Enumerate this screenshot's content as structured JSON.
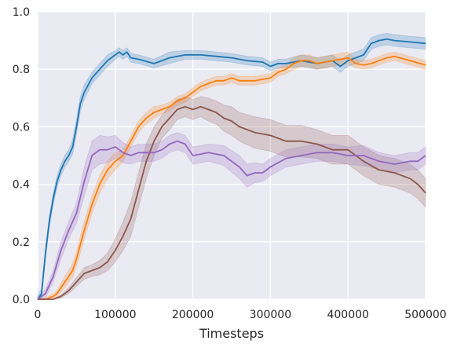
{
  "chart_data": {
    "type": "line",
    "title": "",
    "xlabel": "Timesteps",
    "ylabel": "",
    "xlim": [
      0,
      500000
    ],
    "ylim": [
      0,
      1.0
    ],
    "grid": true,
    "background": "#eaeaf2",
    "xticks": [
      0,
      100000,
      200000,
      300000,
      400000,
      500000
    ],
    "xtick_labels": [
      "0",
      "100000",
      "200000",
      "300000",
      "400000",
      "500000"
    ],
    "yticks": [
      0.0,
      0.2,
      0.4,
      0.6,
      0.8,
      1.0
    ],
    "ytick_labels": [
      "0.0",
      "0.2",
      "0.4",
      "0.6",
      "0.8",
      "1.0"
    ],
    "series": [
      {
        "color": "#1f77b4",
        "x": [
          0,
          5000,
          10000,
          15000,
          20000,
          25000,
          30000,
          35000,
          40000,
          45000,
          50000,
          55000,
          60000,
          70000,
          80000,
          90000,
          100000,
          105000,
          110000,
          115000,
          120000,
          130000,
          150000,
          170000,
          190000,
          210000,
          230000,
          250000,
          270000,
          290000,
          300000,
          310000,
          320000,
          340000,
          360000,
          380000,
          390000,
          400000,
          410000,
          420000,
          430000,
          440000,
          450000,
          460000,
          480000,
          500000
        ],
        "y": [
          0.0,
          0.02,
          0.16,
          0.27,
          0.35,
          0.41,
          0.45,
          0.48,
          0.5,
          0.53,
          0.6,
          0.68,
          0.72,
          0.77,
          0.8,
          0.83,
          0.85,
          0.86,
          0.85,
          0.86,
          0.84,
          0.835,
          0.82,
          0.84,
          0.85,
          0.85,
          0.845,
          0.84,
          0.83,
          0.825,
          0.81,
          0.82,
          0.82,
          0.83,
          0.82,
          0.83,
          0.81,
          0.83,
          0.84,
          0.85,
          0.89,
          0.9,
          0.905,
          0.9,
          0.895,
          0.89
        ],
        "band": [
          0.015,
          0.015,
          0.02,
          0.02,
          0.02,
          0.02,
          0.02,
          0.02,
          0.02,
          0.025,
          0.025,
          0.025,
          0.025,
          0.02,
          0.02,
          0.02,
          0.015,
          0.015,
          0.015,
          0.015,
          0.015,
          0.015,
          0.015,
          0.02,
          0.015,
          0.015,
          0.015,
          0.015,
          0.015,
          0.015,
          0.015,
          0.015,
          0.015,
          0.02,
          0.02,
          0.02,
          0.02,
          0.02,
          0.02,
          0.02,
          0.02,
          0.02,
          0.02,
          0.02,
          0.02,
          0.02
        ]
      },
      {
        "color": "#ff7f0e",
        "x": [
          0,
          10000,
          20000,
          25000,
          30000,
          35000,
          40000,
          45000,
          50000,
          55000,
          60000,
          70000,
          80000,
          90000,
          100000,
          110000,
          120000,
          130000,
          140000,
          150000,
          160000,
          170000,
          180000,
          190000,
          200000,
          210000,
          220000,
          230000,
          240000,
          250000,
          260000,
          280000,
          300000,
          310000,
          320000,
          330000,
          340000,
          350000,
          360000,
          380000,
          400000,
          410000,
          420000,
          430000,
          440000,
          450000,
          460000,
          480000,
          500000
        ],
        "y": [
          0.0,
          0.0,
          0.01,
          0.02,
          0.04,
          0.06,
          0.08,
          0.1,
          0.14,
          0.19,
          0.24,
          0.33,
          0.4,
          0.45,
          0.48,
          0.5,
          0.55,
          0.6,
          0.63,
          0.65,
          0.66,
          0.67,
          0.69,
          0.7,
          0.72,
          0.74,
          0.75,
          0.76,
          0.76,
          0.77,
          0.76,
          0.76,
          0.77,
          0.79,
          0.8,
          0.82,
          0.83,
          0.83,
          0.82,
          0.83,
          0.84,
          0.82,
          0.815,
          0.82,
          0.83,
          0.84,
          0.845,
          0.83,
          0.815
        ],
        "band": [
          0.0,
          0.005,
          0.01,
          0.01,
          0.015,
          0.02,
          0.02,
          0.025,
          0.025,
          0.03,
          0.03,
          0.03,
          0.03,
          0.03,
          0.03,
          0.02,
          0.02,
          0.02,
          0.02,
          0.02,
          0.015,
          0.015,
          0.015,
          0.015,
          0.015,
          0.015,
          0.015,
          0.015,
          0.015,
          0.015,
          0.015,
          0.015,
          0.015,
          0.015,
          0.015,
          0.02,
          0.02,
          0.02,
          0.02,
          0.02,
          0.02,
          0.015,
          0.015,
          0.015,
          0.015,
          0.015,
          0.015,
          0.015,
          0.015
        ]
      },
      {
        "color": "#8c564b",
        "x": [
          0,
          20000,
          30000,
          40000,
          50000,
          60000,
          70000,
          80000,
          90000,
          100000,
          110000,
          120000,
          130000,
          140000,
          150000,
          160000,
          170000,
          180000,
          190000,
          200000,
          210000,
          220000,
          230000,
          240000,
          250000,
          260000,
          280000,
          300000,
          320000,
          340000,
          360000,
          380000,
          400000,
          420000,
          440000,
          460000,
          480000,
          490000,
          500000
        ],
        "y": [
          0.0,
          0.0,
          0.01,
          0.03,
          0.06,
          0.09,
          0.1,
          0.11,
          0.13,
          0.17,
          0.22,
          0.28,
          0.38,
          0.48,
          0.55,
          0.6,
          0.63,
          0.66,
          0.67,
          0.66,
          0.67,
          0.66,
          0.65,
          0.63,
          0.62,
          0.6,
          0.58,
          0.57,
          0.55,
          0.55,
          0.54,
          0.52,
          0.52,
          0.48,
          0.45,
          0.44,
          0.42,
          0.4,
          0.37
        ],
        "band": [
          0.0,
          0.0,
          0.005,
          0.01,
          0.015,
          0.02,
          0.02,
          0.025,
          0.03,
          0.04,
          0.05,
          0.06,
          0.06,
          0.06,
          0.05,
          0.04,
          0.04,
          0.035,
          0.035,
          0.035,
          0.035,
          0.04,
          0.04,
          0.045,
          0.05,
          0.05,
          0.055,
          0.055,
          0.055,
          0.055,
          0.05,
          0.05,
          0.05,
          0.05,
          0.05,
          0.05,
          0.05,
          0.05,
          0.05
        ]
      },
      {
        "color": "#9467bd",
        "x": [
          0,
          10000,
          20000,
          30000,
          40000,
          50000,
          60000,
          70000,
          80000,
          90000,
          100000,
          110000,
          120000,
          130000,
          140000,
          150000,
          160000,
          170000,
          180000,
          190000,
          200000,
          220000,
          240000,
          260000,
          270000,
          280000,
          290000,
          300000,
          320000,
          340000,
          360000,
          380000,
          400000,
          420000,
          440000,
          460000,
          480000,
          490000,
          500000
        ],
        "y": [
          0.0,
          0.02,
          0.08,
          0.17,
          0.24,
          0.3,
          0.41,
          0.5,
          0.52,
          0.52,
          0.53,
          0.51,
          0.5,
          0.51,
          0.51,
          0.51,
          0.52,
          0.54,
          0.55,
          0.54,
          0.5,
          0.51,
          0.5,
          0.46,
          0.43,
          0.44,
          0.44,
          0.46,
          0.49,
          0.5,
          0.51,
          0.51,
          0.5,
          0.5,
          0.48,
          0.47,
          0.48,
          0.48,
          0.5
        ],
        "band": [
          0.0,
          0.015,
          0.02,
          0.03,
          0.03,
          0.035,
          0.05,
          0.05,
          0.05,
          0.045,
          0.04,
          0.035,
          0.03,
          0.03,
          0.03,
          0.03,
          0.03,
          0.03,
          0.03,
          0.03,
          0.03,
          0.03,
          0.035,
          0.04,
          0.04,
          0.035,
          0.03,
          0.03,
          0.03,
          0.03,
          0.03,
          0.03,
          0.03,
          0.035,
          0.03,
          0.03,
          0.03,
          0.03,
          0.03
        ]
      }
    ]
  }
}
